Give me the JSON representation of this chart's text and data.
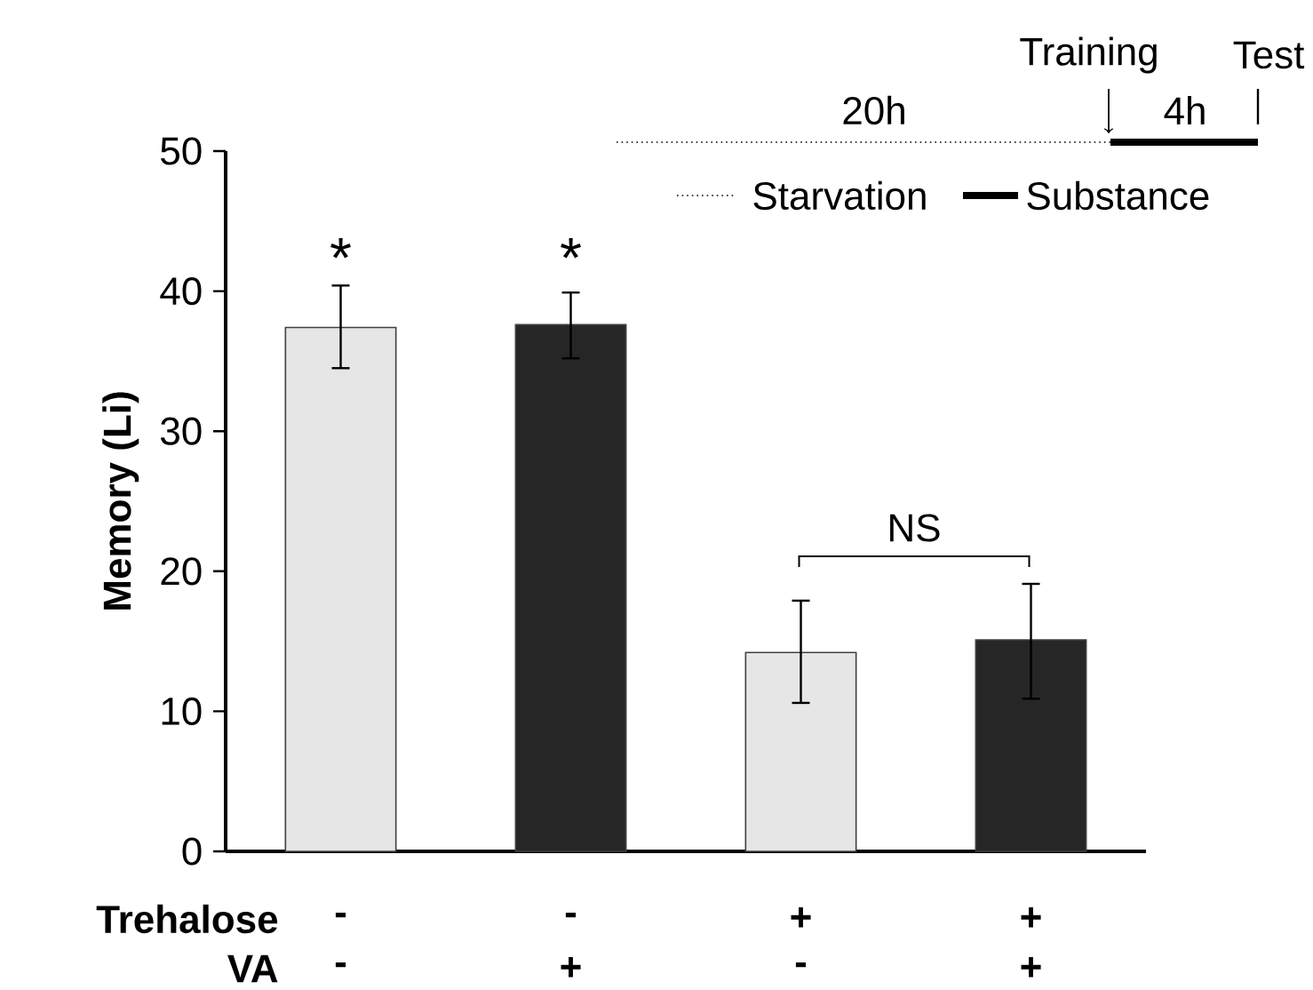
{
  "chart_data": {
    "type": "bar",
    "categories": [
      null,
      null,
      null,
      null
    ],
    "values": [
      37.4,
      37.6,
      14.2,
      15.1
    ],
    "colors": [
      "#e6e6e6",
      "#262626",
      "#e6e6e6",
      "#262626"
    ],
    "errors": [
      [
        34.5,
        40.4
      ],
      [
        35.2,
        39.9
      ],
      [
        10.6,
        17.9
      ],
      [
        10.9,
        19.1
      ]
    ],
    "ylabel": "Memory  (Li)",
    "ylim": [
      0,
      50
    ],
    "yticks": [
      0,
      10,
      20,
      30,
      40,
      50
    ],
    "annotations": [
      "*",
      "*",
      "NS",
      "Trehalose",
      "VA",
      "-",
      "-",
      "+",
      "+",
      "-",
      "+",
      "-",
      "+",
      "Starvation",
      "Substance",
      "20h",
      "4h",
      "Training",
      "Test"
    ]
  }
}
